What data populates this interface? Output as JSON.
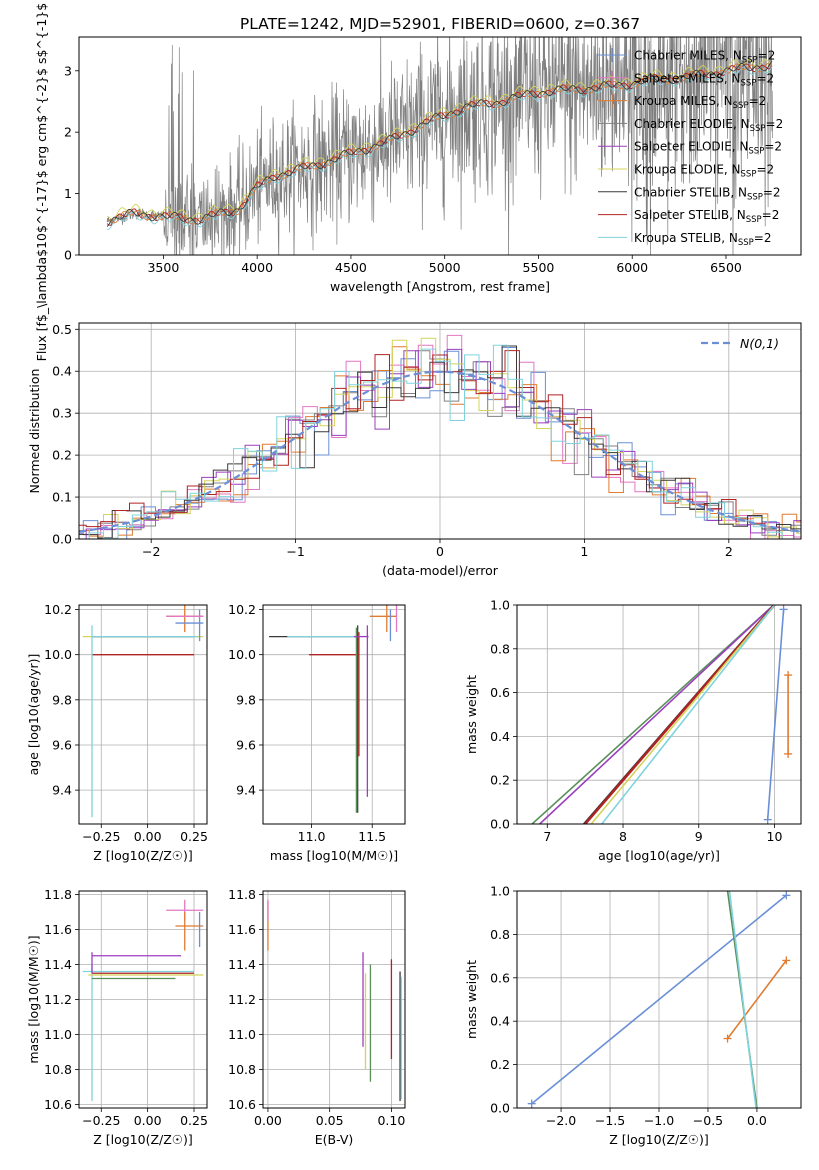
{
  "title": "PLATE=1242, MJD=52901, FIBERID=0600, z=0.367",
  "colors": {
    "Chabrier MILES": "#6a8fd6",
    "Salpeter MILES": "#e377c2",
    "Kroupa MILES": "#e07b30",
    "Chabrier ELODIE": "#808080",
    "Salpeter ELODIE": "#9b3fbf",
    "Kroupa ELODIE": "#d4d45a",
    "Chabrier STELIB": "#3a3a3a",
    "Salpeter STELIB": "#b22222",
    "Kroupa STELIB": "#7fd3de",
    "green_line": "#5a8f5a",
    "normal": "#6a8fd6"
  },
  "chart_data": [
    {
      "id": "spectrum",
      "type": "line",
      "xlabel": "wavelength [Angstrom, rest frame]",
      "ylabel": "Flux [f$_\\lambda$10$^{-17}$ erg cm$^{-2}$ s$^{-1}$ A$^{-1}$]",
      "xlim": [
        3050,
        6900
      ],
      "ylim": [
        0,
        3.55
      ],
      "xticks": [
        3500,
        4000,
        4500,
        5000,
        5500,
        6000,
        6500
      ],
      "yticks": [
        0,
        1,
        2,
        3
      ],
      "grid": false,
      "legend_position": "lower-right",
      "legend": [
        {
          "label": "Chabrier MILES, N",
          "sub": "SSP",
          "suffix": "=2",
          "color_key": "Chabrier MILES",
          "marker": "plus"
        },
        {
          "label": "Salpeter MILES, N",
          "sub": "SSP",
          "suffix": "=2",
          "color_key": "Salpeter MILES",
          "marker": "plus"
        },
        {
          "label": "Kroupa MILES, N",
          "sub": "SSP",
          "suffix": "=2",
          "color_key": "Kroupa MILES",
          "marker": "plus"
        },
        {
          "label": "Chabrier ELODIE, N",
          "sub": "SSP",
          "suffix": "=2",
          "color_key": "Chabrier ELODIE",
          "marker": "line"
        },
        {
          "label": "Salpeter ELODIE, N",
          "sub": "SSP",
          "suffix": "=2",
          "color_key": "Salpeter ELODIE",
          "marker": "line"
        },
        {
          "label": "Kroupa ELODIE, N",
          "sub": "SSP",
          "suffix": "=2",
          "color_key": "Kroupa ELODIE",
          "marker": "line"
        },
        {
          "label": "Chabrier STELIB, N",
          "sub": "SSP",
          "suffix": "=2",
          "color_key": "Chabrier STELIB",
          "marker": "line"
        },
        {
          "label": "Salpeter STELIB, N",
          "sub": "SSP",
          "suffix": "=2",
          "color_key": "Salpeter STELIB",
          "marker": "line"
        },
        {
          "label": "Kroupa STELIB, N",
          "sub": "SSP",
          "suffix": "=2",
          "color_key": "Kroupa STELIB",
          "marker": "line"
        }
      ],
      "model_continuum": {
        "x": [
          3200,
          3350,
          3500,
          3700,
          3900,
          4000,
          4100,
          4300,
          4500,
          4700,
          4900,
          5100,
          5300,
          5500,
          5700,
          5900,
          6100,
          6300,
          6500,
          6750
        ],
        "y": [
          0.55,
          0.68,
          0.62,
          0.58,
          0.75,
          1.1,
          1.3,
          1.45,
          1.65,
          1.85,
          2.15,
          2.4,
          2.5,
          2.65,
          2.7,
          2.75,
          2.85,
          2.9,
          3.0,
          3.1
        ]
      }
    },
    {
      "id": "residuals",
      "type": "histogram",
      "xlabel": "(data-model)/error",
      "ylabel": "Normed distribution",
      "xlim": [
        -2.5,
        2.5
      ],
      "ylim": [
        0,
        0.515
      ],
      "xticks": [
        -2,
        -1,
        0,
        1,
        2
      ],
      "yticks": [
        0.0,
        0.1,
        0.2,
        0.3,
        0.4,
        0.5
      ],
      "grid": true,
      "normal_label": "N(0,1)",
      "legend_position": "upper-right"
    },
    {
      "id": "age_vs_Z",
      "type": "scatter",
      "xlabel": "Z [log10(Z/Z☉)]",
      "ylabel": "age  [log10(age/yr)]",
      "xlim": [
        -0.37,
        0.32
      ],
      "ylim": [
        9.25,
        10.22
      ],
      "xticks": [
        -0.25,
        0.0,
        0.25
      ],
      "yticks": [
        9.4,
        9.6,
        9.8,
        10.0,
        10.2
      ],
      "grid": true
    },
    {
      "id": "age_vs_mass",
      "type": "scatter",
      "xlabel": "mass [log10(M/M☉)]",
      "ylabel": "",
      "xlim": [
        10.6,
        11.77
      ],
      "ylim": [
        9.25,
        10.22
      ],
      "xticks": [
        11.0,
        11.5
      ],
      "yticks": [
        9.4,
        9.6,
        9.8,
        10.0,
        10.2
      ],
      "grid": true
    },
    {
      "id": "massweight_vs_age",
      "type": "line",
      "xlabel": "age  [log10(age/yr)]",
      "ylabel": "mass weight",
      "xlim": [
        6.6,
        10.35
      ],
      "ylim": [
        0,
        1.0
      ],
      "xticks": [
        7,
        8,
        9,
        10
      ],
      "yticks": [
        0.0,
        0.2,
        0.4,
        0.6,
        0.8,
        1.0
      ],
      "grid": true,
      "series": [
        {
          "color_key": "Chabrier MILES",
          "x": [
            9.91,
            10.12
          ],
          "y": [
            0.02,
            0.98
          ],
          "markers": true
        },
        {
          "color_key": "Kroupa MILES",
          "x": [
            10.18,
            10.18
          ],
          "y": [
            0.32,
            0.68
          ],
          "markers": true
        },
        {
          "color_key": "green_line",
          "x": [
            6.8,
            9.99
          ],
          "y": [
            0.0,
            1.0
          ],
          "markers": false
        },
        {
          "color_key": "Salpeter ELODIE",
          "x": [
            6.9,
            9.99
          ],
          "y": [
            0.0,
            1.0
          ],
          "markers": false
        },
        {
          "color_key": "Chabrier STELIB",
          "x": [
            7.48,
            9.99
          ],
          "y": [
            0.0,
            1.0
          ],
          "markers": false
        },
        {
          "color_key": "Salpeter STELIB",
          "x": [
            7.5,
            10.0
          ],
          "y": [
            0.0,
            1.0
          ],
          "markers": false
        },
        {
          "color_key": "Kroupa ELODIE",
          "x": [
            7.58,
            10.0
          ],
          "y": [
            0.0,
            1.0
          ],
          "markers": false
        },
        {
          "color_key": "Kroupa STELIB",
          "x": [
            7.72,
            10.0
          ],
          "y": [
            0.0,
            1.0
          ],
          "markers": false
        }
      ]
    },
    {
      "id": "mass_vs_Z",
      "type": "scatter",
      "xlabel": "Z [log10(Z/Z☉)]",
      "ylabel": "mass [log10(M/M☉)]",
      "xlim": [
        -0.37,
        0.32
      ],
      "ylim": [
        10.58,
        11.82
      ],
      "xticks": [
        -0.25,
        0.0,
        0.25
      ],
      "yticks": [
        10.6,
        10.8,
        11.0,
        11.2,
        11.4,
        11.6,
        11.8
      ],
      "grid": true
    },
    {
      "id": "mass_vs_ebv",
      "type": "scatter",
      "xlabel": "E(B-V)",
      "ylabel": "",
      "xlim": [
        -0.004,
        0.111
      ],
      "ylim": [
        10.58,
        11.82
      ],
      "xticks": [
        0.0,
        0.05,
        0.1
      ],
      "yticks": [
        10.6,
        10.8,
        11.0,
        11.2,
        11.4,
        11.6,
        11.8
      ],
      "grid": true
    },
    {
      "id": "massweight_vs_Z",
      "type": "line",
      "xlabel": "Z [log10(Z/Z☉)]",
      "ylabel": "mass weight",
      "xlim": [
        -2.45,
        0.45
      ],
      "ylim": [
        0,
        1.0
      ],
      "xticks": [
        -2.0,
        -1.5,
        -1.0,
        -0.5,
        0.0
      ],
      "yticks": [
        0.0,
        0.2,
        0.4,
        0.6,
        0.8,
        1.0
      ],
      "grid": true,
      "series": [
        {
          "color_key": "Chabrier MILES",
          "x": [
            -2.3,
            0.3
          ],
          "y": [
            0.02,
            0.98
          ],
          "markers": true
        },
        {
          "color_key": "Kroupa MILES",
          "x": [
            -0.3,
            0.3
          ],
          "y": [
            0.32,
            0.68
          ],
          "markers": true
        },
        {
          "color_key": "green_line",
          "x": [
            -0.3,
            0.0
          ],
          "y": [
            1.0,
            0.0
          ],
          "markers": false
        },
        {
          "color_key": "Kroupa STELIB",
          "x": [
            -0.28,
            -0.01
          ],
          "y": [
            1.0,
            0.0
          ],
          "markers": false
        }
      ]
    }
  ]
}
